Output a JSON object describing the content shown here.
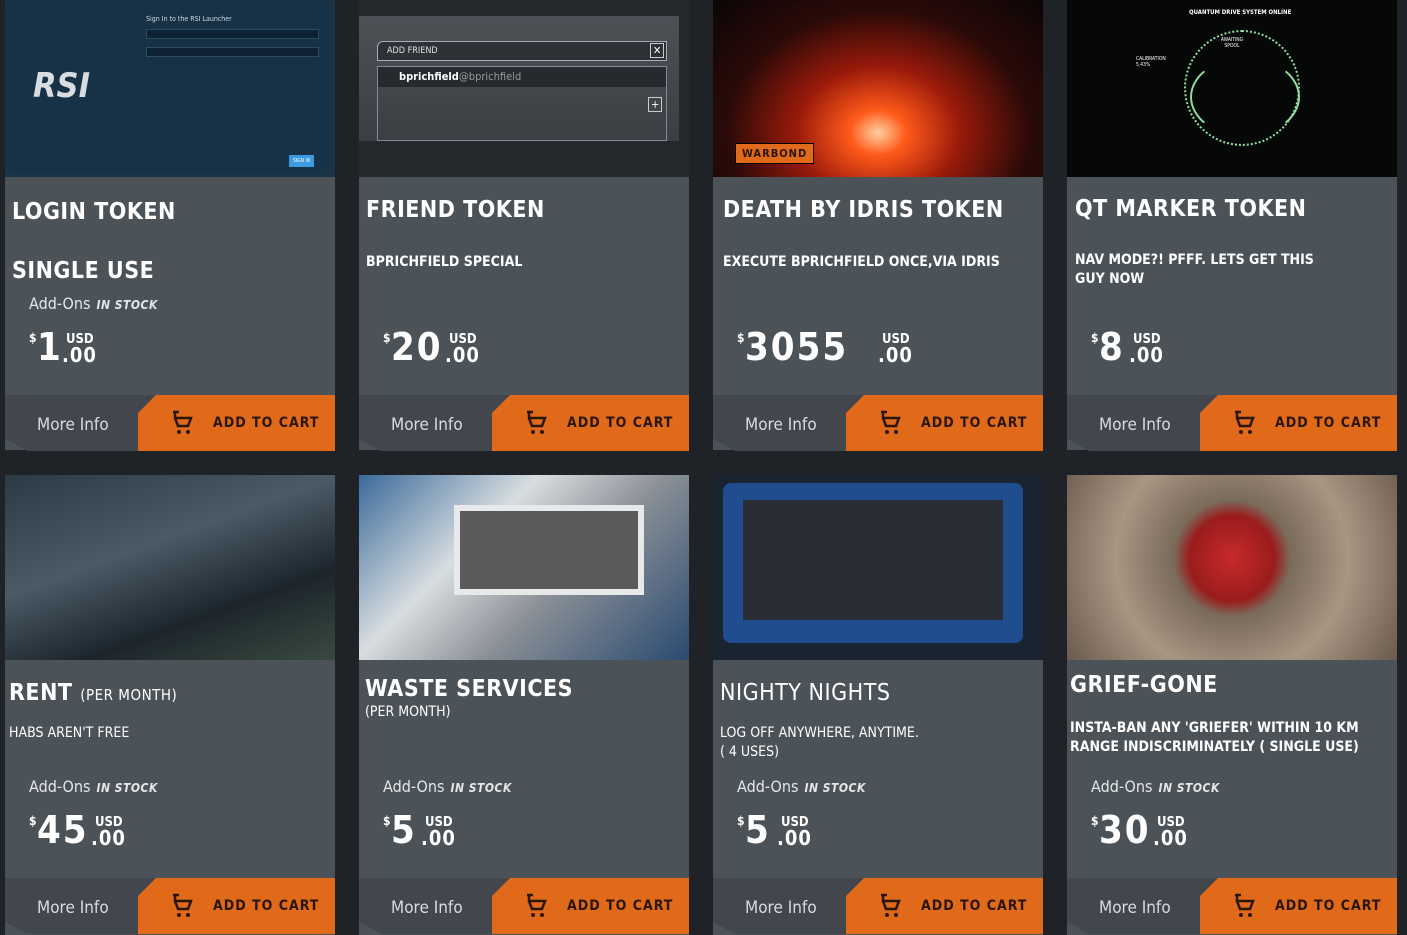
{
  "colors": {
    "background": "#1f2327",
    "card": "#4b5258",
    "footer": "#41474d",
    "accent": "#e0691a"
  },
  "common": {
    "more_info": "More Info",
    "add_to_cart": "ADD TO CART",
    "addons": "Add-Ons",
    "in_stock": "IN STOCK",
    "currency_symbol": "$",
    "currency": "USD",
    "cents": ".00"
  },
  "products": [
    {
      "title": "LOGIN TOKEN",
      "subtitle": "SINGLE USE",
      "price": "1",
      "image": {
        "logo": "RSI",
        "heading": "Sign In to the RSI Launcher",
        "button": "SIGN IN"
      }
    },
    {
      "title": "FRIEND TOKEN",
      "description": "BPRICHFIELD SPECIAL",
      "price": "20",
      "image": {
        "heading": "ADD FRIEND",
        "user": "bprichfield",
        "handle": "@bprichfield"
      }
    },
    {
      "title": "DEATH BY IDRIS TOKEN",
      "description": "EXECUTE BPRICHFIELD ONCE,VIA IDRIS",
      "price": "3055",
      "image": {
        "badge": "WARBOND"
      }
    },
    {
      "title": "QT MARKER TOKEN",
      "description": "NAV MODE?! PFFF. LETS GET THIS GUY NOW",
      "price": "8",
      "image": {
        "heading": "QUANTUM DRIVE SYSTEM ONLINE",
        "status": "AWAITING SPOOL",
        "calibration": "CALIBRATION 5.43%"
      }
    },
    {
      "title": "RENT",
      "title_suffix": "(PER MONTH)",
      "description": "HABS AREN'T FREE",
      "price": "45"
    },
    {
      "title": "WASTE SERVICES",
      "description": "(PER MONTH)",
      "price": "5"
    },
    {
      "title": "NIGHTY NIGHTS",
      "description": "LOG OFF ANYWHERE, ANYTIME.",
      "description2": "( 4 USES)",
      "price": "5"
    },
    {
      "title": "GRIEF-GONE",
      "description": "INSTA-BAN ANY 'GRIEFER' WITHIN 10 KM RANGE INDISCRIMINATELY ( SINGLE USE)",
      "price": "30"
    }
  ]
}
